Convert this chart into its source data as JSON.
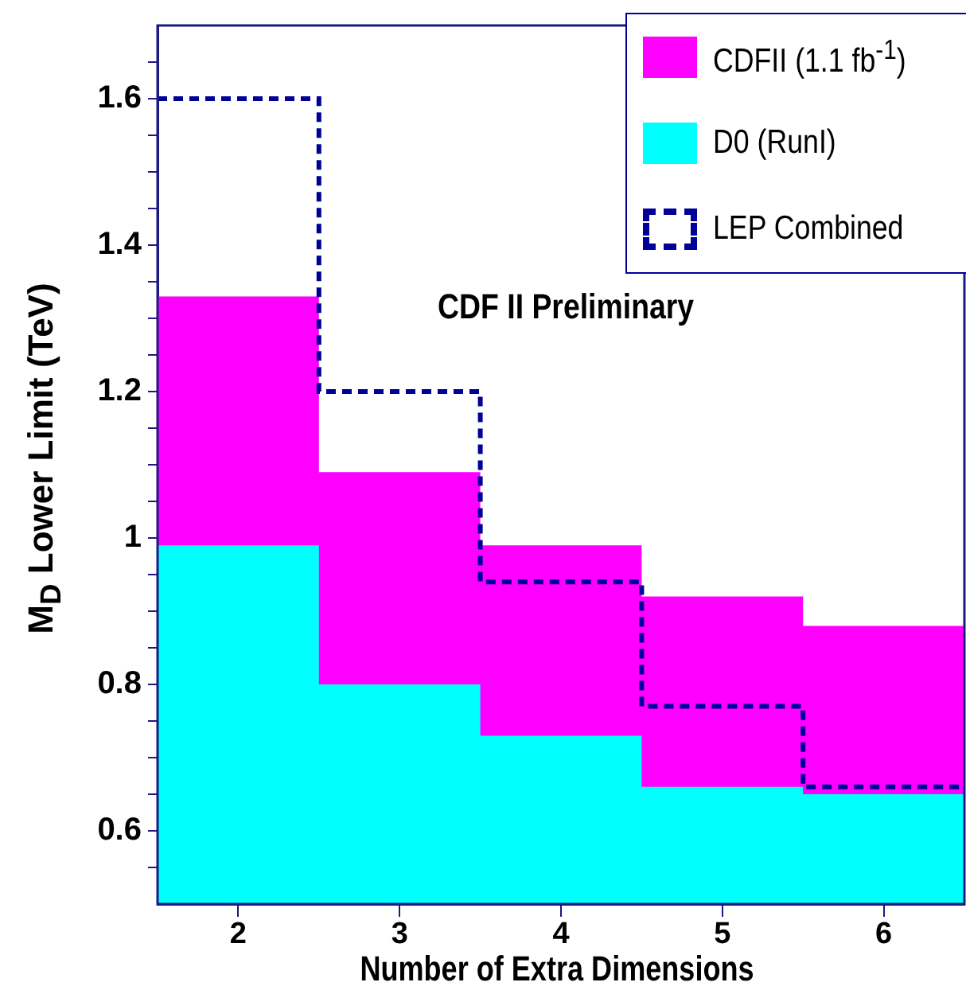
{
  "chart_data": {
    "type": "histogram",
    "xlabel": "Number of Extra Dimensions",
    "ylabel": "M$_{D}$ Lower Limit (TeV)",
    "annotations": [
      "CDF II Preliminary"
    ],
    "bins": [
      1.5,
      2.5,
      3.5,
      4.5,
      5.5,
      6.5
    ],
    "xlim": [
      1.5,
      6.5
    ],
    "xticks": [
      2,
      3,
      4,
      5,
      6
    ],
    "ylim": [
      0.5,
      1.7
    ],
    "yticks": [
      {
        "value": 0.55,
        "label": null
      },
      0.6,
      {
        "value": 0.65,
        "label": null
      },
      {
        "value": 0.7,
        "label": null
      },
      {
        "value": 0.75,
        "label": null
      },
      0.8,
      {
        "value": 0.85,
        "label": null
      },
      {
        "value": 0.9,
        "label": null
      },
      {
        "value": 0.95,
        "label": null
      },
      1,
      {
        "value": 1.05,
        "label": null
      },
      {
        "value": 1.1,
        "label": null
      },
      {
        "value": 1.15,
        "label": null
      },
      1.2,
      {
        "value": 1.25,
        "label": null
      },
      {
        "value": 1.3,
        "label": null
      },
      {
        "value": 1.35,
        "label": null
      },
      1.4,
      {
        "value": 1.45,
        "label": null
      },
      {
        "value": 1.5,
        "label": null
      },
      {
        "value": 1.55,
        "label": null
      },
      1.6,
      {
        "value": 1.65,
        "label": null
      }
    ],
    "grid": false,
    "legend": "top right",
    "series": [
      {
        "name": "CDFII (1.1 fb$^{-1}$)",
        "color": "#ff00ff",
        "values": [
          1.33,
          1.09,
          0.99,
          0.92,
          0.88
        ]
      },
      {
        "name": "D0 (RunI)",
        "color": "#00ffff",
        "values": [
          0.99,
          0.8,
          0.73,
          0.66,
          0.65
        ]
      },
      {
        "name": "LEP Combined",
        "type": "step",
        "color": "#000099",
        "line_style": "dashed",
        "x": [
          1.5,
          2.5,
          3.5,
          4.5,
          5.5,
          6.5
        ],
        "values": [
          1.6,
          1.2,
          0.94,
          0.77,
          0.66,
          0.66
        ]
      }
    ]
  }
}
